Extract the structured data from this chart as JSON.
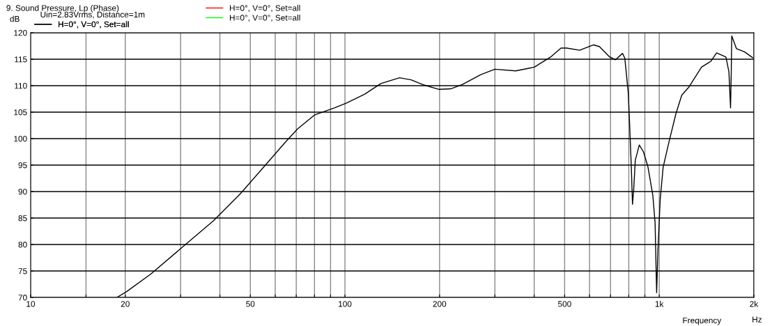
{
  "chart_data": {
    "type": "line",
    "title": "9. Sound Pressure, Lp (Phase)",
    "subtitle": "Uin=2.83Vrms, Distance=1m",
    "ylabel": "dB",
    "xlabel": "Frequency",
    "annotations": [
      "Hz"
    ],
    "log": "x",
    "grid": true,
    "legend": "top left",
    "marker": "none",
    "line_style": "solid",
    "x": [
      18.8,
      20.2,
      24.1,
      30.4,
      38.2,
      46.5,
      55.1,
      64.8,
      70.6,
      80.2,
      92.6,
      100.9,
      115.6,
      130.2,
      149.2,
      162.4,
      176.8,
      199.3,
      216.8,
      236.2,
      270.6,
      299.8,
      349.3,
      400.4,
      451,
      486.9,
      507.9,
      557.9,
      617.9,
      644.6,
      696,
      726,
      764,
      777,
      797,
      804,
      815,
      822,
      829,
      839,
      864,
      891,
      921,
      954,
      970,
      981,
      991,
      1007,
      1029,
      1074,
      1130,
      1179,
      1241,
      1363,
      1459,
      1522,
      1630,
      1666,
      1686,
      1695,
      1701,
      1760,
      1867,
      1982
    ],
    "series": [
      {
        "name": "H=0°, V=0°, Set=all",
        "color": "#000000",
        "values": [
          70.0,
          71.1,
          74.4,
          79.5,
          84.5,
          89.6,
          94.6,
          99.4,
          101.8,
          104.5,
          105.8,
          106.7,
          108.4,
          110.4,
          111.5,
          111.1,
          110.2,
          109.3,
          109.4,
          110.2,
          112.1,
          113.1,
          112.8,
          113.5,
          115.4,
          117.1,
          117.1,
          116.7,
          117.7,
          117.4,
          115.4,
          114.9,
          116.1,
          115.2,
          108.6,
          103.4,
          94.6,
          87.6,
          90.2,
          95.9,
          98.8,
          97.5,
          94.6,
          89.3,
          84.1,
          70.9,
          79.2,
          88.5,
          94.6,
          99.4,
          104.7,
          108.2,
          109.7,
          113.5,
          114.6,
          116.2,
          115.4,
          112.6,
          105.8,
          112.8,
          119.4,
          117.0,
          116.4,
          115.3
        ]
      },
      {
        "name": "H=0°, V=0°, Set=all",
        "color": "#ff0000",
        "values": [
          null,
          null,
          null,
          null,
          null,
          null,
          null,
          null,
          null,
          null,
          null,
          null,
          null,
          null,
          null,
          null,
          null,
          null,
          null,
          null,
          null,
          null,
          null,
          null,
          null,
          null,
          null,
          null,
          null,
          null,
          null,
          null,
          null,
          null,
          null,
          null,
          null,
          null,
          null,
          null,
          null,
          null,
          null,
          null,
          null,
          null,
          null,
          null,
          null,
          null,
          null,
          null,
          null,
          null,
          null,
          null,
          null,
          null,
          null,
          null,
          null,
          null,
          null,
          null
        ]
      },
      {
        "name": "H=0°, V=0°, Set=all",
        "color": "#00ff00",
        "values": [
          null,
          null,
          null,
          null,
          null,
          null,
          null,
          null,
          null,
          null,
          null,
          null,
          null,
          null,
          null,
          null,
          null,
          null,
          null,
          null,
          null,
          null,
          null,
          null,
          null,
          null,
          null,
          null,
          null,
          null,
          null,
          null,
          null,
          null,
          null,
          null,
          null,
          null,
          null,
          null,
          null,
          null,
          null,
          null,
          null,
          null,
          null,
          null,
          null,
          null,
          null,
          null,
          null,
          null,
          null,
          null,
          null,
          null,
          null,
          null,
          null,
          null,
          null,
          null
        ]
      }
    ],
    "xlim": [
      10,
      2000
    ],
    "xticks": [
      10,
      {
        "value": 15,
        "label": null
      },
      20,
      {
        "value": 30,
        "label": null
      },
      {
        "value": 40,
        "label": null
      },
      50,
      {
        "value": 60,
        "label": null
      },
      {
        "value": 70,
        "label": null
      },
      {
        "value": 80,
        "label": null
      },
      {
        "value": 90,
        "label": null
      },
      100,
      200,
      {
        "value": 300,
        "label": null
      },
      {
        "value": 400,
        "label": null
      },
      500,
      {
        "value": 600,
        "label": null
      },
      {
        "value": 700,
        "label": null
      },
      {
        "value": 800,
        "label": null
      },
      {
        "value": 900,
        "label": null
      },
      {
        "value": 1000,
        "label": "1k"
      },
      {
        "value": 2000,
        "label": "2k"
      }
    ],
    "ylim": [
      70,
      120
    ],
    "yticks": [
      70,
      75,
      80,
      85,
      90,
      95,
      100,
      105,
      110,
      115,
      120
    ]
  }
}
